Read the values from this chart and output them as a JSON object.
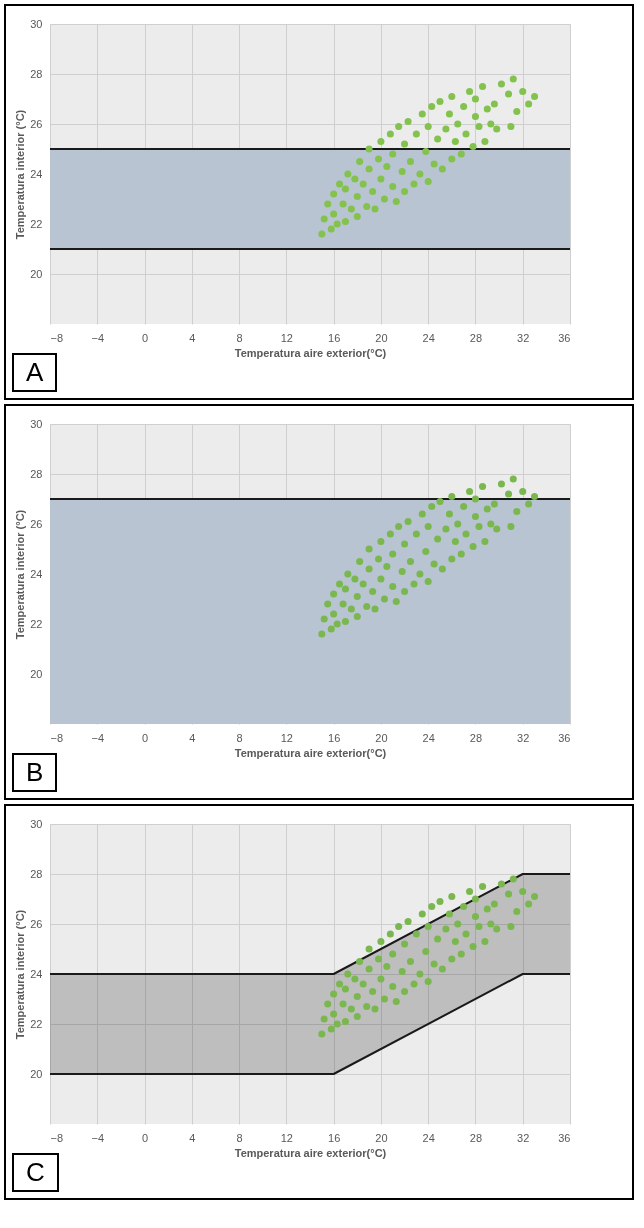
{
  "chart_data": [
    {
      "type": "scatter",
      "xlabel": "Temperatura aire exterior(°C)",
      "ylabel": "Temperatura interior (°C)",
      "xlim": [
        -8,
        36
      ],
      "ylim": [
        18,
        30
      ],
      "xticks": [
        -8,
        -4,
        0,
        4,
        8,
        12,
        16,
        20,
        24,
        28,
        32,
        36
      ],
      "yticks": [
        20,
        22,
        24,
        26,
        28,
        30
      ],
      "grid": true,
      "marker": "circle",
      "annotations": [
        "A"
      ],
      "bands": [
        {
          "axis": "y",
          "from": 21,
          "to": 25,
          "color": "#b8c4d2"
        }
      ],
      "ref_lines": [
        {
          "axis": "y",
          "value": 21,
          "color": "#1a1a1a"
        },
        {
          "axis": "y",
          "value": 25,
          "color": "#1a1a1a"
        }
      ],
      "series": [
        {
          "type": "scatter",
          "color": "#84c24e",
          "x": [
            15,
            15.2,
            15.5,
            15.8,
            16,
            16,
            16.3,
            16.5,
            16.8,
            17,
            17,
            17.2,
            17.5,
            17.8,
            18,
            18,
            18.2,
            18.5,
            18.8,
            19,
            19,
            19.3,
            19.5,
            19.8,
            20,
            20,
            20.3,
            20.5,
            20.8,
            21,
            21,
            21.3,
            21.5,
            21.8,
            22,
            22,
            22.3,
            22.5,
            22.8,
            23,
            23.3,
            23.5,
            23.8,
            24,
            24,
            24.3,
            24.5,
            24.8,
            25,
            25.2,
            25.5,
            25.8,
            26,
            26,
            26.3,
            26.5,
            26.8,
            27,
            27.2,
            27.5,
            27.8,
            28,
            28,
            28.3,
            28.6,
            28.8,
            29,
            29.3,
            29.6,
            29.8,
            30.2,
            30.8,
            31.2,
            31.5,
            32,
            32.5,
            33,
            31
          ],
          "values": [
            21.6,
            22.2,
            22.8,
            21.8,
            22.4,
            23.2,
            22,
            23.6,
            22.8,
            22.1,
            23.4,
            24,
            22.6,
            23.8,
            22.3,
            23.1,
            24.5,
            23.6,
            22.7,
            24.2,
            25,
            23.3,
            22.6,
            24.6,
            23.8,
            25.3,
            23,
            24.3,
            25.6,
            23.5,
            24.8,
            22.9,
            25.9,
            24.1,
            23.3,
            25.2,
            26.1,
            24.5,
            23.6,
            25.6,
            24,
            26.4,
            24.9,
            23.7,
            25.9,
            26.7,
            24.4,
            25.4,
            26.9,
            24.2,
            25.8,
            26.4,
            24.6,
            27.1,
            25.3,
            26,
            24.8,
            26.7,
            25.6,
            27.3,
            25.1,
            26.3,
            27,
            25.9,
            27.5,
            25.3,
            26.6,
            26,
            26.8,
            25.8,
            27.6,
            27.2,
            27.8,
            26.5,
            27.3,
            26.8,
            27.1,
            25.9
          ]
        }
      ]
    },
    {
      "type": "scatter",
      "xlabel": "Temperatura aire exterior(°C)",
      "ylabel": "Temperatura interior  (°C)",
      "xlim": [
        -8,
        36
      ],
      "ylim": [
        18,
        30
      ],
      "xticks": [
        -8,
        -4,
        0,
        4,
        8,
        12,
        16,
        20,
        24,
        28,
        32,
        36
      ],
      "yticks": [
        20,
        22,
        24,
        26,
        28,
        30
      ],
      "grid": true,
      "marker": "circle",
      "annotations": [
        "B"
      ],
      "bands": [
        {
          "axis": "y",
          "from": 18,
          "to": 27,
          "color": "#b8c4d2"
        }
      ],
      "ref_lines": [
        {
          "axis": "y",
          "value": 27,
          "color": "#1a1a1a"
        }
      ],
      "series": [
        {
          "type": "scatter",
          "color": "#7ab84f",
          "x": [
            15,
            15.2,
            15.5,
            15.8,
            16,
            16,
            16.3,
            16.5,
            16.8,
            17,
            17,
            17.2,
            17.5,
            17.8,
            18,
            18,
            18.2,
            18.5,
            18.8,
            19,
            19,
            19.3,
            19.5,
            19.8,
            20,
            20,
            20.3,
            20.5,
            20.8,
            21,
            21,
            21.3,
            21.5,
            21.8,
            22,
            22,
            22.3,
            22.5,
            22.8,
            23,
            23.3,
            23.5,
            23.8,
            24,
            24,
            24.3,
            24.5,
            24.8,
            25,
            25.2,
            25.5,
            25.8,
            26,
            26,
            26.3,
            26.5,
            26.8,
            27,
            27.2,
            27.5,
            27.8,
            28,
            28,
            28.3,
            28.6,
            28.8,
            29,
            29.3,
            29.6,
            29.8,
            30.2,
            30.8,
            31.2,
            31.5,
            32,
            32.5,
            33,
            31
          ],
          "values": [
            21.6,
            22.2,
            22.8,
            21.8,
            22.4,
            23.2,
            22,
            23.6,
            22.8,
            22.1,
            23.4,
            24,
            22.6,
            23.8,
            22.3,
            23.1,
            24.5,
            23.6,
            22.7,
            24.2,
            25,
            23.3,
            22.6,
            24.6,
            23.8,
            25.3,
            23,
            24.3,
            25.6,
            23.5,
            24.8,
            22.9,
            25.9,
            24.1,
            23.3,
            25.2,
            26.1,
            24.5,
            23.6,
            25.6,
            24,
            26.4,
            24.9,
            23.7,
            25.9,
            26.7,
            24.4,
            25.4,
            26.9,
            24.2,
            25.8,
            26.4,
            24.6,
            27.1,
            25.3,
            26,
            24.8,
            26.7,
            25.6,
            27.3,
            25.1,
            26.3,
            27,
            25.9,
            27.5,
            25.3,
            26.6,
            26,
            26.8,
            25.8,
            27.6,
            27.2,
            27.8,
            26.5,
            27.3,
            26.8,
            27.1,
            25.9
          ]
        }
      ]
    },
    {
      "type": "scatter",
      "xlabel": "Temperatura aire exterior(°C)",
      "ylabel": "Temperatura interior  (°C)",
      "xlim": [
        -8,
        36
      ],
      "ylim": [
        18,
        30
      ],
      "xticks": [
        -8,
        -4,
        0,
        4,
        8,
        12,
        16,
        20,
        24,
        28,
        32,
        36
      ],
      "yticks": [
        20,
        22,
        24,
        26,
        28,
        30
      ],
      "grid": true,
      "annotations": [
        "C"
      ],
      "series": [
        {
          "type": "line",
          "color": "#1a1a1a",
          "x": [
            -8,
            16,
            32,
            36
          ],
          "values": [
            24,
            24,
            28,
            28
          ],
          "lower": [
            20,
            20,
            24,
            24
          ],
          "upper": [
            24,
            24,
            28,
            28
          ]
        },
        {
          "type": "line",
          "color": "#1a1a1a",
          "x": [
            -8,
            16,
            32,
            36
          ],
          "values": [
            20,
            20,
            24,
            24
          ]
        },
        {
          "type": "scatter",
          "marker": "circle",
          "color": "#7ab84f",
          "x": [
            15,
            15.2,
            15.5,
            15.8,
            16,
            16,
            16.3,
            16.5,
            16.8,
            17,
            17,
            17.2,
            17.5,
            17.8,
            18,
            18,
            18.2,
            18.5,
            18.8,
            19,
            19,
            19.3,
            19.5,
            19.8,
            20,
            20,
            20.3,
            20.5,
            20.8,
            21,
            21,
            21.3,
            21.5,
            21.8,
            22,
            22,
            22.3,
            22.5,
            22.8,
            23,
            23.3,
            23.5,
            23.8,
            24,
            24,
            24.3,
            24.5,
            24.8,
            25,
            25.2,
            25.5,
            25.8,
            26,
            26,
            26.3,
            26.5,
            26.8,
            27,
            27.2,
            27.5,
            27.8,
            28,
            28,
            28.3,
            28.6,
            28.8,
            29,
            29.3,
            29.6,
            29.8,
            30.2,
            30.8,
            31.2,
            31.5,
            32,
            32.5,
            33,
            31
          ],
          "values": [
            21.6,
            22.2,
            22.8,
            21.8,
            22.4,
            23.2,
            22,
            23.6,
            22.8,
            22.1,
            23.4,
            24,
            22.6,
            23.8,
            22.3,
            23.1,
            24.5,
            23.6,
            22.7,
            24.2,
            25,
            23.3,
            22.6,
            24.6,
            23.8,
            25.3,
            23,
            24.3,
            25.6,
            23.5,
            24.8,
            22.9,
            25.9,
            24.1,
            23.3,
            25.2,
            26.1,
            24.5,
            23.6,
            25.6,
            24,
            26.4,
            24.9,
            23.7,
            25.9,
            26.7,
            24.4,
            25.4,
            26.9,
            24.2,
            25.8,
            26.4,
            24.6,
            27.1,
            25.3,
            26,
            24.8,
            26.7,
            25.6,
            27.3,
            25.1,
            26.3,
            27,
            25.9,
            27.5,
            25.3,
            26.6,
            26,
            26.8,
            25.8,
            27.6,
            27.2,
            27.8,
            26.5,
            27.3,
            26.8,
            27.1,
            25.9
          ]
        }
      ]
    }
  ]
}
